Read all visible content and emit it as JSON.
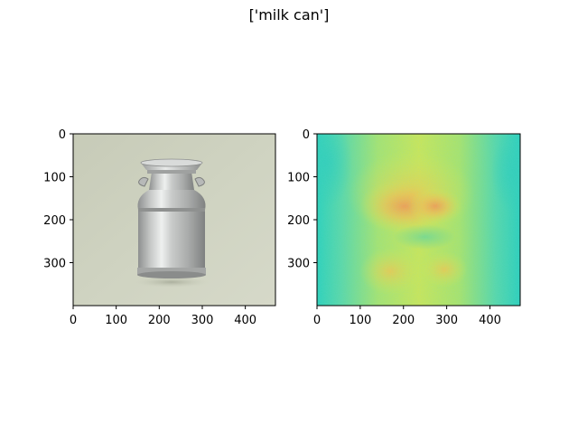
{
  "figure": {
    "title": "['milk can']"
  },
  "chart_data": [
    {
      "type": "heatmap",
      "title": "",
      "xlabel": "",
      "ylabel": "",
      "xlim": [
        0,
        470
      ],
      "ylim": [
        400,
        0
      ],
      "x_ticks": [
        "0",
        "100",
        "200",
        "300",
        "400"
      ],
      "y_ticks": [
        "0",
        "100",
        "200",
        "300"
      ],
      "image": "photograph of an aluminium milk can on a pale grey-green background"
    },
    {
      "type": "heatmap",
      "title": "",
      "xlabel": "",
      "ylabel": "",
      "xlim": [
        0,
        470
      ],
      "ylim": [
        400,
        0
      ],
      "x_ticks": [
        "0",
        "100",
        "200",
        "300",
        "400"
      ],
      "y_ticks": [
        "0",
        "100",
        "200",
        "300"
      ],
      "colors": {
        "low": "#2fd3b6",
        "mid": "#c8ea4f",
        "high": "#f4a24a"
      }
    }
  ]
}
